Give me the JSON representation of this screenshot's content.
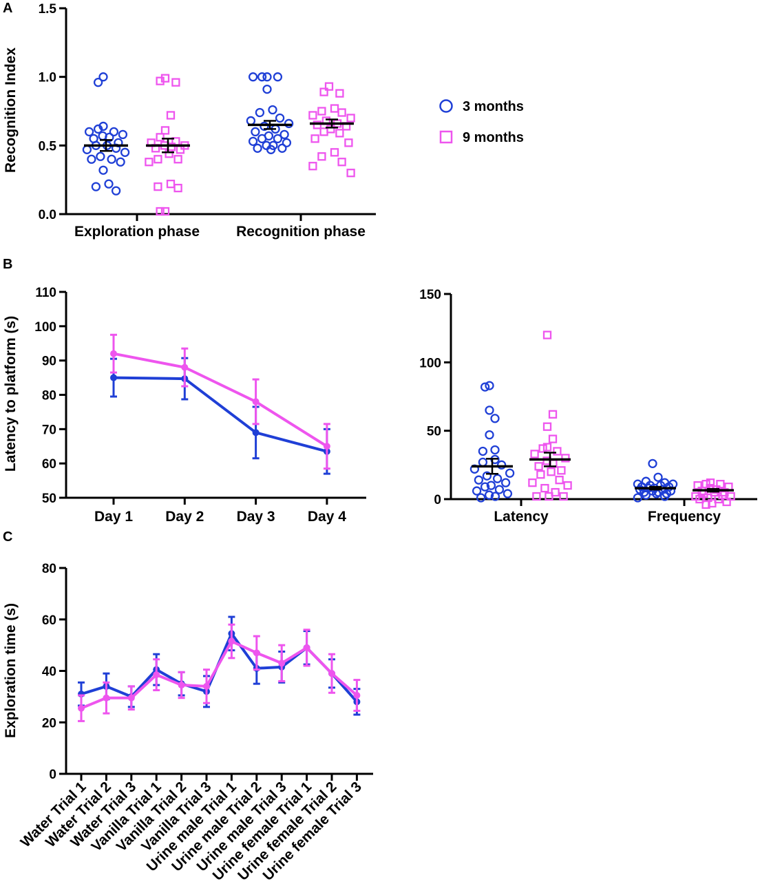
{
  "colors": {
    "blue": "#1f3fd6",
    "magenta": "#ee55ee",
    "mean": "#000000"
  },
  "legend": [
    {
      "label": "3 months",
      "marker": "circle",
      "color": "#1f3fd6"
    },
    {
      "label": "9 months",
      "marker": "square",
      "color": "#ee55ee"
    }
  ],
  "chart_data": [
    {
      "panel": "A",
      "type": "scatter",
      "ylabel": "Recognition Index",
      "ylim": [
        0,
        1.5
      ],
      "yticks": [
        "0.0",
        "0.5",
        "1.0",
        "1.5"
      ],
      "categories": [
        "Exploration phase",
        "Recognition phase"
      ],
      "groups": [
        {
          "category": "Exploration phase",
          "series": "3 months",
          "mean": 0.5,
          "sem": 0.04,
          "values": [
            1.0,
            0.96,
            0.64,
            0.62,
            0.6,
            0.6,
            0.58,
            0.57,
            0.56,
            0.55,
            0.52,
            0.5,
            0.5,
            0.48,
            0.47,
            0.45,
            0.42,
            0.4,
            0.4,
            0.38,
            0.32,
            0.22,
            0.2,
            0.17
          ]
        },
        {
          "category": "Exploration phase",
          "series": "9 months",
          "mean": 0.5,
          "sem": 0.05,
          "values": [
            0.99,
            0.97,
            0.96,
            0.72,
            0.61,
            0.56,
            0.53,
            0.52,
            0.5,
            0.5,
            0.49,
            0.48,
            0.47,
            0.44,
            0.4,
            0.4,
            0.38,
            0.22,
            0.2,
            0.19,
            0.02,
            0.02
          ]
        },
        {
          "category": "Recognition phase",
          "series": "3 months",
          "mean": 0.65,
          "sem": 0.03,
          "values": [
            1.0,
            1.0,
            1.0,
            1.0,
            0.91,
            0.76,
            0.74,
            0.7,
            0.68,
            0.66,
            0.64,
            0.62,
            0.6,
            0.58,
            0.57,
            0.55,
            0.55,
            0.53,
            0.52,
            0.5,
            0.5,
            0.48,
            0.48,
            0.47
          ]
        },
        {
          "category": "Recognition phase",
          "series": "9 months",
          "mean": 0.66,
          "sem": 0.03,
          "values": [
            0.93,
            0.89,
            0.88,
            0.77,
            0.75,
            0.74,
            0.72,
            0.7,
            0.68,
            0.66,
            0.65,
            0.64,
            0.62,
            0.6,
            0.59,
            0.55,
            0.52,
            0.45,
            0.42,
            0.38,
            0.35,
            0.3
          ]
        }
      ]
    },
    {
      "panel": "B",
      "type": "line",
      "ylabel": "Latency to platform (s)",
      "ylim": [
        50,
        110
      ],
      "yticks": [
        "50",
        "60",
        "70",
        "80",
        "90",
        "100",
        "110"
      ],
      "categories": [
        "Day 1",
        "Day 2",
        "Day 3",
        "Day 4"
      ],
      "series": [
        {
          "name": "3 months",
          "values": [
            85,
            84.7,
            69,
            63.5
          ],
          "err": [
            5.5,
            6,
            7.5,
            6.5
          ]
        },
        {
          "name": "9 months",
          "values": [
            92,
            88,
            78,
            65
          ],
          "err": [
            5.5,
            5.5,
            6.5,
            6.5
          ]
        }
      ]
    },
    {
      "panel": "B-right",
      "type": "scatter",
      "ylim": [
        0,
        150
      ],
      "yticks": [
        "0",
        "50",
        "100",
        "150"
      ],
      "categories": [
        "Latency",
        "Frequency"
      ],
      "groups": [
        {
          "category": "Latency",
          "series": "3 months",
          "mean": 24,
          "sem": 5.5,
          "values": [
            83,
            82,
            65,
            59,
            47,
            36,
            35,
            29,
            27,
            25,
            22,
            19,
            17,
            15,
            14,
            12,
            10,
            9,
            7,
            6,
            4,
            3,
            2,
            1
          ]
        },
        {
          "category": "Latency",
          "series": "9 months",
          "mean": 29,
          "sem": 5,
          "values": [
            120,
            62,
            53,
            44,
            38,
            37,
            35,
            33,
            30,
            28,
            26,
            24,
            21,
            20,
            18,
            14,
            12,
            10,
            8,
            5,
            2,
            2,
            2
          ]
        },
        {
          "category": "Frequency",
          "series": "3 months",
          "mean": 8,
          "sem": 1,
          "values": [
            26,
            16,
            13,
            12,
            11,
            11,
            10,
            10,
            9,
            9,
            8,
            8,
            7,
            7,
            6,
            6,
            5,
            5,
            4,
            4,
            3,
            2,
            1
          ]
        },
        {
          "category": "Frequency",
          "series": "9 months",
          "mean": 6.5,
          "sem": 1,
          "values": [
            12,
            11,
            11,
            10,
            9,
            8,
            7,
            6,
            5,
            5,
            4,
            3,
            2,
            2,
            1,
            0,
            0,
            -2,
            -3,
            -4
          ]
        }
      ]
    },
    {
      "panel": "C",
      "type": "line",
      "ylabel": "Exploration time (s)",
      "ylim": [
        0,
        80
      ],
      "yticks": [
        "0",
        "20",
        "40",
        "60",
        "80"
      ],
      "categories": [
        "Water Trial 1",
        "Water Trial 2",
        "Water Trial 3",
        "Vanilla Trial 1",
        "Vanilla Trial 2",
        "Vanilla Trial 3",
        "Urine male Trial 1",
        "Urine male Trial 2",
        "Urine male Trial 3",
        "Urine female Trial 1",
        "Urine female Trial 2",
        "Urine female Trial 3"
      ],
      "series": [
        {
          "name": "3 months",
          "values": [
            31,
            34,
            30,
            40.5,
            35,
            32,
            54.5,
            41,
            41.5,
            49,
            39,
            28
          ],
          "err": [
            4.5,
            5,
            4,
            6,
            4.5,
            6,
            6.5,
            6,
            6,
            6.5,
            5.5,
            5
          ]
        },
        {
          "name": "9 months",
          "values": [
            25.5,
            29.5,
            29.5,
            38.5,
            34.5,
            34,
            51.5,
            47,
            43,
            49,
            39,
            30.5
          ],
          "err": [
            5,
            6,
            4.5,
            6,
            5,
            6.5,
            6.5,
            6.5,
            7,
            7,
            7.5,
            6
          ]
        }
      ]
    }
  ]
}
